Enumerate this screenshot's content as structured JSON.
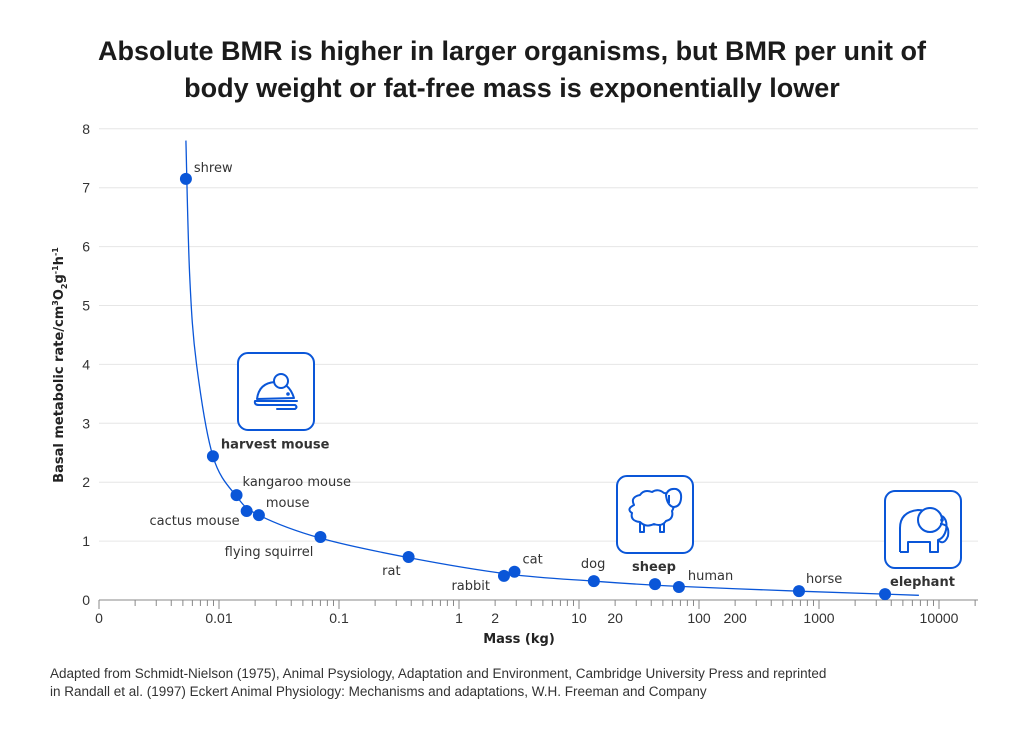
{
  "chart_data": {
    "type": "scatter",
    "title": [
      "Absolute BMR is higher in larger organisms, but BMR per unit of",
      "body weight or fat-free mass is exponentially lower"
    ],
    "xlabel": "Mass (kg)",
    "ylabel": {
      "main": "Basal metabolic rate/cm",
      "sup1": "3",
      "o": "O",
      "sub": "2",
      "g": "g",
      "sup2": "-1",
      "h": "h",
      "sup3": "-1"
    },
    "x_scale": "log",
    "xlim": [
      0.001,
      20000
    ],
    "ylim": [
      0,
      8
    ],
    "grid": "horizontal",
    "x_ticks": [
      {
        "value": 0.001,
        "label": "0"
      },
      {
        "value": 0.01,
        "label": "0.01"
      },
      {
        "value": 0.1,
        "label": "0.1"
      },
      {
        "value": 1,
        "label": "1"
      },
      {
        "value": 2,
        "label": "2"
      },
      {
        "value": 10,
        "label": "10"
      },
      {
        "value": 20,
        "label": "20"
      },
      {
        "value": 100,
        "label": "100"
      },
      {
        "value": 200,
        "label": "200"
      },
      {
        "value": 1000,
        "label": "1000"
      },
      {
        "value": 10000,
        "label": "10000"
      }
    ],
    "y_ticks": [
      0,
      1,
      2,
      3,
      4,
      5,
      6,
      7,
      8
    ],
    "points": [
      {
        "name": "shrew",
        "x": 0.0053,
        "y": 7.15,
        "highlight": false
      },
      {
        "name": "harvest mouse",
        "x": 0.0089,
        "y": 2.44,
        "highlight": true,
        "icon": "mouse-icon"
      },
      {
        "name": "kangaroo mouse",
        "x": 0.014,
        "y": 1.78,
        "highlight": false
      },
      {
        "name": "cactus mouse",
        "x": 0.017,
        "y": 1.51,
        "highlight": false
      },
      {
        "name": "mouse",
        "x": 0.0215,
        "y": 1.44,
        "highlight": false
      },
      {
        "name": "flying squirrel",
        "x": 0.07,
        "y": 1.07,
        "highlight": false
      },
      {
        "name": "rat",
        "x": 0.38,
        "y": 0.73,
        "highlight": false
      },
      {
        "name": "rabbit",
        "x": 2.37,
        "y": 0.41,
        "highlight": false
      },
      {
        "name": "cat",
        "x": 2.9,
        "y": 0.48,
        "highlight": false
      },
      {
        "name": "dog",
        "x": 13.3,
        "y": 0.32,
        "highlight": false
      },
      {
        "name": "sheep",
        "x": 43,
        "y": 0.27,
        "highlight": true,
        "icon": "sheep-icon"
      },
      {
        "name": "human",
        "x": 68,
        "y": 0.22,
        "highlight": false
      },
      {
        "name": "horse",
        "x": 681,
        "y": 0.15,
        "highlight": false
      },
      {
        "name": "elephant",
        "x": 3550,
        "y": 0.1,
        "highlight": true,
        "icon": "elephant-icon"
      }
    ],
    "fit_curve": [
      [
        0.0053,
        7.8
      ],
      [
        0.0057,
        5.5
      ],
      [
        0.0065,
        4.0
      ],
      [
        0.0089,
        2.44
      ],
      [
        0.014,
        1.76
      ],
      [
        0.0215,
        1.44
      ],
      [
        0.07,
        1.05
      ],
      [
        0.38,
        0.72
      ],
      [
        2.6,
        0.44
      ],
      [
        13.3,
        0.32
      ],
      [
        55,
        0.24
      ],
      [
        681,
        0.15
      ],
      [
        3550,
        0.1
      ],
      [
        6800,
        0.08
      ]
    ],
    "colors": {
      "accent": "#0a56d8",
      "grid": "#e6e6e6",
      "text": "#333333"
    }
  },
  "footer": [
    "Adapted from Schmidt-Nielson (1975), Animal Psysiology, Adaptation and Environment, Cambridge University Press and reprinted",
    "in Randall et al. (1997) Eckert Animal Physiology: Mechanisms and adaptations, W.H. Freeman and Company"
  ]
}
